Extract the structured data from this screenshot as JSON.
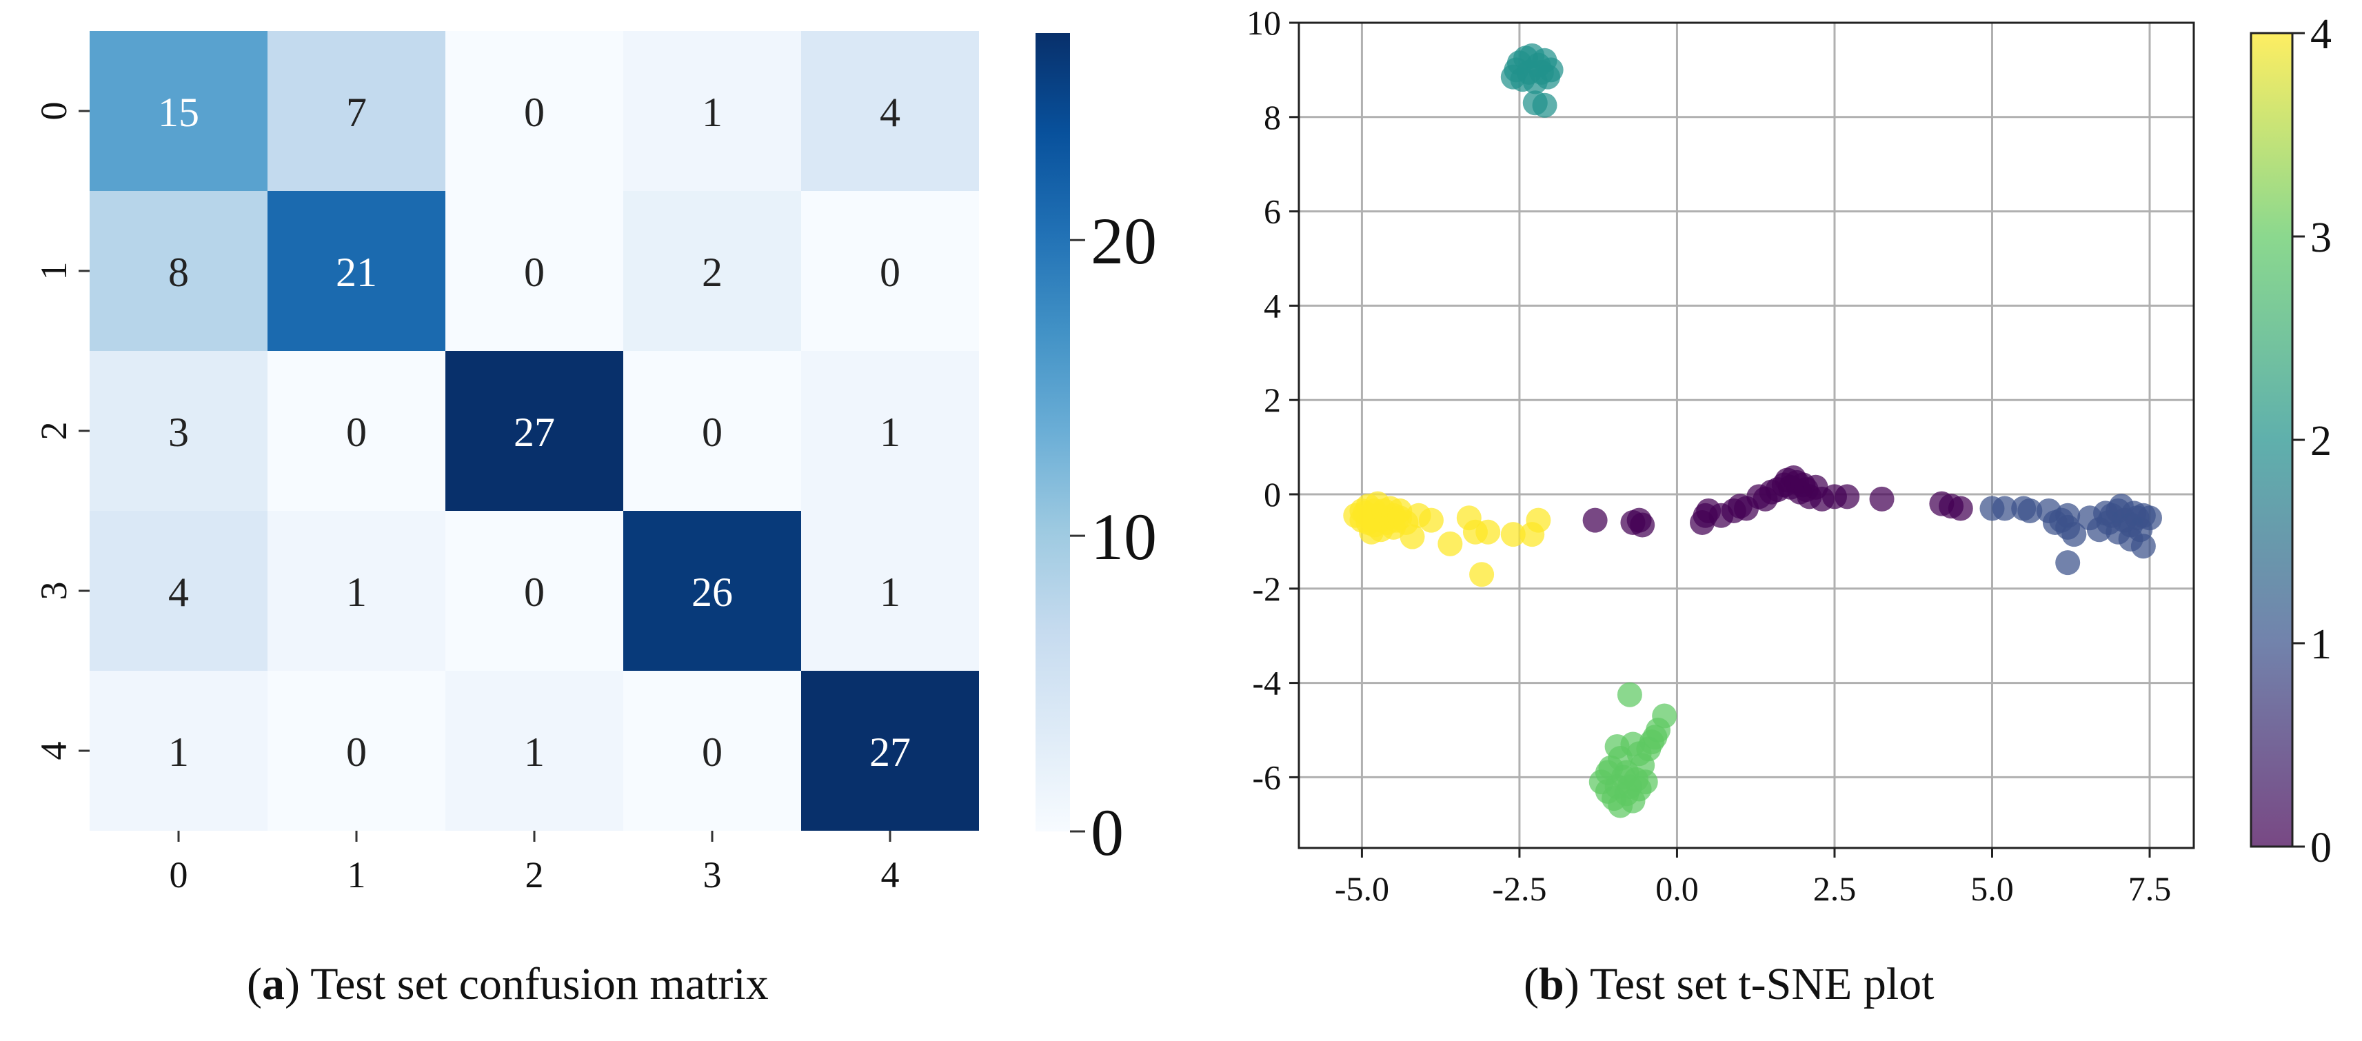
{
  "figure": {
    "panels": [
      {
        "letter": "a",
        "caption": "Test set confusion matrix"
      },
      {
        "letter": "b",
        "caption": "Test set t-SNE plot"
      }
    ]
  },
  "chart_data": [
    {
      "type": "heatmap",
      "title": "Test set confusion matrix",
      "row_labels": [
        "0",
        "1",
        "2",
        "3",
        "4"
      ],
      "col_labels": [
        "0",
        "1",
        "2",
        "3",
        "4"
      ],
      "matrix": [
        [
          15,
          7,
          0,
          1,
          4
        ],
        [
          8,
          21,
          0,
          2,
          0
        ],
        [
          3,
          0,
          27,
          0,
          1
        ],
        [
          4,
          1,
          0,
          26,
          1
        ],
        [
          1,
          0,
          1,
          0,
          27
        ]
      ],
      "colormap": "Blues",
      "colors": {
        "low": "#f7fbff",
        "high": "#08306b"
      },
      "vmin": 0,
      "vmax": 27,
      "colorbar_ticks": [
        0,
        10,
        20
      ]
    },
    {
      "type": "scatter",
      "title": "Test set t-SNE plot",
      "xlim": [
        -6.0,
        8.2
      ],
      "ylim": [
        -7.5,
        10.0
      ],
      "xticks": [
        -5.0,
        -2.5,
        0.0,
        2.5,
        5.0,
        7.5
      ],
      "yticks": [
        -6,
        -4,
        -2,
        0,
        2,
        4,
        6,
        8,
        10
      ],
      "grid": true,
      "colormap": "viridis",
      "colors": {
        "class_0": "#440154",
        "class_1": "#3b528b",
        "class_2": "#21918c",
        "class_3": "#5ec962",
        "class_4": "#fde725"
      },
      "colorbar_range": [
        0,
        4
      ],
      "colorbar_ticks": [
        0,
        1,
        2,
        3,
        4
      ],
      "series": [
        {
          "class": 0,
          "points": [
            [
              -1.3,
              -0.55
            ],
            [
              -0.7,
              -0.6
            ],
            [
              -0.55,
              -0.65
            ],
            [
              -0.6,
              -0.55
            ],
            [
              0.4,
              -0.6
            ],
            [
              0.45,
              -0.45
            ],
            [
              0.5,
              -0.35
            ],
            [
              0.7,
              -0.45
            ],
            [
              0.9,
              -0.35
            ],
            [
              1.0,
              -0.25
            ],
            [
              1.1,
              -0.3
            ],
            [
              1.3,
              -0.05
            ],
            [
              1.4,
              -0.1
            ],
            [
              1.5,
              0.05
            ],
            [
              1.6,
              0.1
            ],
            [
              1.7,
              0.2
            ],
            [
              1.75,
              0.3
            ],
            [
              1.8,
              0.15
            ],
            [
              1.85,
              0.35
            ],
            [
              1.9,
              0.25
            ],
            [
              1.95,
              0.05
            ],
            [
              2.0,
              0.2
            ],
            [
              2.05,
              0.1
            ],
            [
              2.1,
              -0.05
            ],
            [
              2.2,
              0.15
            ],
            [
              2.3,
              -0.1
            ],
            [
              2.5,
              -0.05
            ],
            [
              2.7,
              -0.05
            ],
            [
              3.25,
              -0.1
            ],
            [
              4.2,
              -0.2
            ],
            [
              4.35,
              -0.25
            ],
            [
              4.5,
              -0.3
            ]
          ]
        },
        {
          "class": 1,
          "points": [
            [
              5.0,
              -0.3
            ],
            [
              5.2,
              -0.3
            ],
            [
              5.5,
              -0.3
            ],
            [
              5.6,
              -0.35
            ],
            [
              5.9,
              -0.35
            ],
            [
              6.0,
              -0.6
            ],
            [
              6.1,
              -0.55
            ],
            [
              6.2,
              -0.45
            ],
            [
              6.2,
              -0.7
            ],
            [
              6.3,
              -0.85
            ],
            [
              6.2,
              -1.45
            ],
            [
              6.8,
              -0.4
            ],
            [
              6.85,
              -0.6
            ],
            [
              6.9,
              -0.45
            ],
            [
              7.0,
              -0.35
            ],
            [
              7.0,
              -0.8
            ],
            [
              7.05,
              -0.25
            ],
            [
              7.1,
              -0.55
            ],
            [
              7.2,
              -0.65
            ],
            [
              7.2,
              -0.95
            ],
            [
              7.25,
              -0.4
            ],
            [
              7.3,
              -0.5
            ],
            [
              7.35,
              -0.75
            ],
            [
              7.4,
              -0.45
            ],
            [
              7.4,
              -1.1
            ],
            [
              7.5,
              -0.5
            ],
            [
              6.55,
              -0.5
            ],
            [
              6.7,
              -0.75
            ]
          ]
        },
        {
          "class": 2,
          "points": [
            [
              -2.6,
              8.85
            ],
            [
              -2.55,
              9.0
            ],
            [
              -2.5,
              9.15
            ],
            [
              -2.45,
              8.8
            ],
            [
              -2.4,
              9.25
            ],
            [
              -2.35,
              8.95
            ],
            [
              -2.3,
              9.3
            ],
            [
              -2.25,
              8.75
            ],
            [
              -2.2,
              9.1
            ],
            [
              -2.15,
              8.95
            ],
            [
              -2.1,
              9.2
            ],
            [
              -2.05,
              8.85
            ],
            [
              -2.0,
              9.0
            ],
            [
              -2.25,
              8.3
            ],
            [
              -2.1,
              8.25
            ]
          ]
        },
        {
          "class": 3,
          "points": [
            [
              -0.75,
              -4.25
            ],
            [
              -0.2,
              -4.7
            ],
            [
              -1.05,
              -5.8
            ],
            [
              -0.95,
              -5.35
            ],
            [
              -0.9,
              -5.6
            ],
            [
              -0.85,
              -6.0
            ],
            [
              -0.8,
              -5.9
            ],
            [
              -0.75,
              -6.2
            ],
            [
              -0.7,
              -5.3
            ],
            [
              -0.65,
              -6.05
            ],
            [
              -0.6,
              -5.5
            ],
            [
              -0.55,
              -5.75
            ],
            [
              -0.5,
              -6.1
            ],
            [
              -0.45,
              -5.4
            ],
            [
              -0.4,
              -5.25
            ],
            [
              -0.35,
              -5.15
            ],
            [
              -0.3,
              -5.0
            ],
            [
              -1.2,
              -6.1
            ],
            [
              -1.1,
              -6.3
            ],
            [
              -1.0,
              -6.45
            ],
            [
              -0.9,
              -6.6
            ],
            [
              -0.8,
              -6.35
            ],
            [
              -0.7,
              -6.5
            ],
            [
              -0.6,
              -6.25
            ],
            [
              -1.1,
              -5.9
            ],
            [
              -0.95,
              -6.2
            ]
          ]
        },
        {
          "class": 4,
          "points": [
            [
              -5.1,
              -0.45
            ],
            [
              -5.0,
              -0.55
            ],
            [
              -5.0,
              -0.35
            ],
            [
              -4.95,
              -0.4
            ],
            [
              -4.9,
              -0.6
            ],
            [
              -4.9,
              -0.25
            ],
            [
              -4.85,
              -0.5
            ],
            [
              -4.85,
              -0.8
            ],
            [
              -4.8,
              -0.35
            ],
            [
              -4.8,
              -0.65
            ],
            [
              -4.75,
              -0.45
            ],
            [
              -4.75,
              -0.2
            ],
            [
              -4.7,
              -0.55
            ],
            [
              -4.7,
              -0.75
            ],
            [
              -4.65,
              -0.35
            ],
            [
              -4.6,
              -0.5
            ],
            [
              -4.6,
              -0.6
            ],
            [
              -4.55,
              -0.3
            ],
            [
              -4.5,
              -0.45
            ],
            [
              -4.5,
              -0.7
            ],
            [
              -4.45,
              -0.55
            ],
            [
              -4.4,
              -0.35
            ],
            [
              -4.4,
              -0.5
            ],
            [
              -4.3,
              -0.6
            ],
            [
              -4.2,
              -0.9
            ],
            [
              -4.1,
              -0.45
            ],
            [
              -3.9,
              -0.55
            ],
            [
              -3.6,
              -1.05
            ],
            [
              -3.3,
              -0.5
            ],
            [
              -3.2,
              -0.8
            ],
            [
              -3.1,
              -1.7
            ],
            [
              -3.0,
              -0.8
            ],
            [
              -2.6,
              -0.85
            ],
            [
              -2.3,
              -0.85
            ],
            [
              -2.2,
              -0.55
            ]
          ]
        }
      ]
    }
  ]
}
